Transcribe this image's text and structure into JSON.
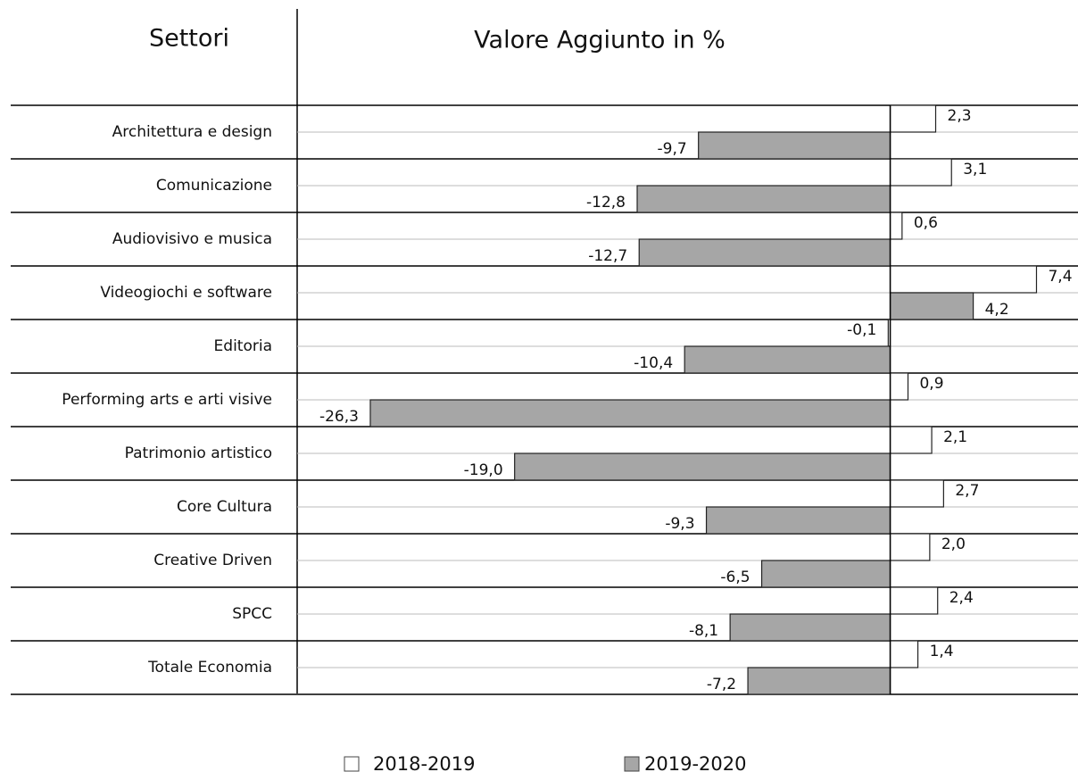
{
  "chart_data": {
    "type": "hbar",
    "column_headers": [
      "Settori",
      "Valore Aggiunto in %"
    ],
    "categories": [
      "Architettura e design",
      "Comunicazione",
      "Audiovisivo e musica",
      "Videogiochi e software",
      "Editoria",
      "Performing arts e arti visive",
      "Patrimonio artistico",
      "Core Cultura",
      "Creative Driven",
      "SPCC",
      "Totale Economia"
    ],
    "series": [
      {
        "name": "2018-2019",
        "color": "#ffffff",
        "values": [
          2.3,
          3.1,
          0.6,
          7.4,
          -0.1,
          0.9,
          2.1,
          2.7,
          2.0,
          2.4,
          1.4
        ],
        "value_labels": [
          "2,3",
          "3,1",
          "0,6",
          "7,4",
          "-0,1",
          "0,9",
          "2,1",
          "2,7",
          "2,0",
          "2,4",
          "1,4"
        ]
      },
      {
        "name": "2019-2020",
        "color": "#a6a6a6",
        "values": [
          -9.7,
          -12.8,
          -12.7,
          4.2,
          -10.4,
          -26.3,
          -19.0,
          -9.3,
          -6.5,
          -8.1,
          -7.2
        ],
        "value_labels": [
          "-9,7",
          "-12,8",
          "-12,7",
          "4,2",
          "-10,4",
          "-26,3",
          "-19,0",
          "-9,3",
          "-6,5",
          "-8,1",
          "-7,2"
        ]
      }
    ],
    "xlim": [
      -30,
      9.5
    ]
  }
}
